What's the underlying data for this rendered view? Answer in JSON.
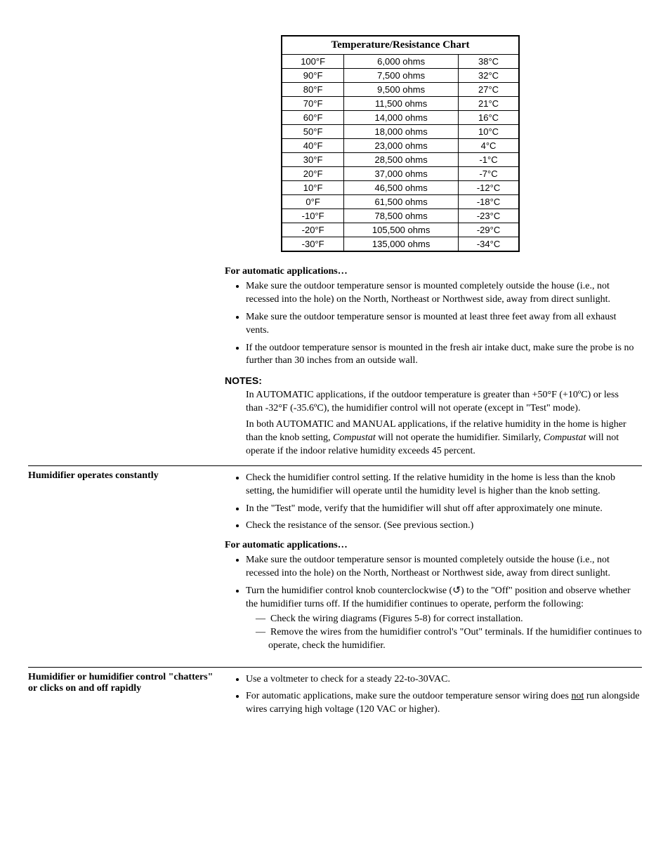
{
  "chart": {
    "title": "Temperature/Resistance Chart",
    "rows": [
      {
        "f": "100°F",
        "ohms": "6,000 ohms",
        "c": "38°C"
      },
      {
        "f": "90°F",
        "ohms": "7,500 ohms",
        "c": "32°C"
      },
      {
        "f": "80°F",
        "ohms": "9,500 ohms",
        "c": "27°C"
      },
      {
        "f": "70°F",
        "ohms": "11,500 ohms",
        "c": "21°C"
      },
      {
        "f": "60°F",
        "ohms": "14,000 ohms",
        "c": "16°C"
      },
      {
        "f": "50°F",
        "ohms": "18,000 ohms",
        "c": "10°C"
      },
      {
        "f": "40°F",
        "ohms": "23,000 ohms",
        "c": "4°C"
      },
      {
        "f": "30°F",
        "ohms": "28,500 ohms",
        "c": "-1°C"
      },
      {
        "f": "20°F",
        "ohms": "37,000 ohms",
        "c": "-7°C"
      },
      {
        "f": "10°F",
        "ohms": "46,500 ohms",
        "c": "-12°C"
      },
      {
        "f": "0°F",
        "ohms": "61,500 ohms",
        "c": "-18°C"
      },
      {
        "f": "-10°F",
        "ohms": "78,500 ohms",
        "c": "-23°C"
      },
      {
        "f": "-20°F",
        "ohms": "105,500 ohms",
        "c": "-29°C"
      },
      {
        "f": "-30°F",
        "ohms": "135,000 ohms",
        "c": "-34°C"
      }
    ]
  },
  "auto_apps_head": "For automatic applications…",
  "auto_bullets_1": [
    "Make sure the outdoor temperature sensor is mounted completely outside the house (i.e., not recessed into the hole) on the North, Northeast or Northwest side, away from direct sunlight.",
    "Make sure the outdoor temperature sensor is mounted at least three feet away from all exhaust vents.",
    "If the outdoor temperature sensor is mounted in the fresh air intake duct, make sure the probe is no further than 30 inches from an outside wall."
  ],
  "notes_head": "NOTES:",
  "notes": {
    "p1_a": "In AUTOMATIC applications, if the outdoor temperature is greater than +50°F (+10ºC) or less than -32°F (-35.6ºC), the humidifier control will not operate (except in \"Test\" mode).",
    "p2_a": "In both AUTOMATIC and MANUAL applications, if the relative humidity in the home is higher than the knob setting, ",
    "p2_em1": "Compustat",
    "p2_b": " will not operate the humidifier. Similarly, ",
    "p2_em2": "Compustat",
    "p2_c": " will not operate if the indoor relative humidity exceeds 45 percent."
  },
  "section2": {
    "left": "Humidifier operates constantly",
    "bullets_a": [
      "Check the humidifier control setting. If the relative humidity in the home is less than the knob setting, the humidifier will operate until the humidity level is higher than the knob setting.",
      "In the \"Test\" mode, verify that the humidifier will shut off after approximately one minute.",
      "Check the resistance of the sensor. (See previous section.)"
    ],
    "auto_head": "For automatic applications…",
    "bullets_b": {
      "b1": "Make sure the outdoor temperature sensor is mounted completely outside the house (i.e., not recessed into the hole) on the North, Northeast or Northwest side, away from direct sunlight.",
      "b2_a": "Turn the humidifier control knob counterclockwise (",
      "b2_icon": "↺",
      "b2_b": ") to the \"Off\" position and observe whether the humidifier turns off. If the humidifier continues to operate, perform the following:",
      "sub1": "—  Check the wiring diagrams (Figures 5-8) for correct installation.",
      "sub2": "—  Remove the wires from the humidifier control's \"Out\" terminals. If the humidifier continues to operate, check the humidifier."
    }
  },
  "section3": {
    "left": "Humidifier or humidifier control \"chatters\" or clicks on and off rapidly",
    "b1": "Use a voltmeter to check for a steady 22-to-30VAC.",
    "b2_a": "For automatic applications, make sure the outdoor temperature sensor wiring does ",
    "b2_u": "not",
    "b2_b": " run alongside wires carrying high voltage (120 VAC or higher)."
  }
}
